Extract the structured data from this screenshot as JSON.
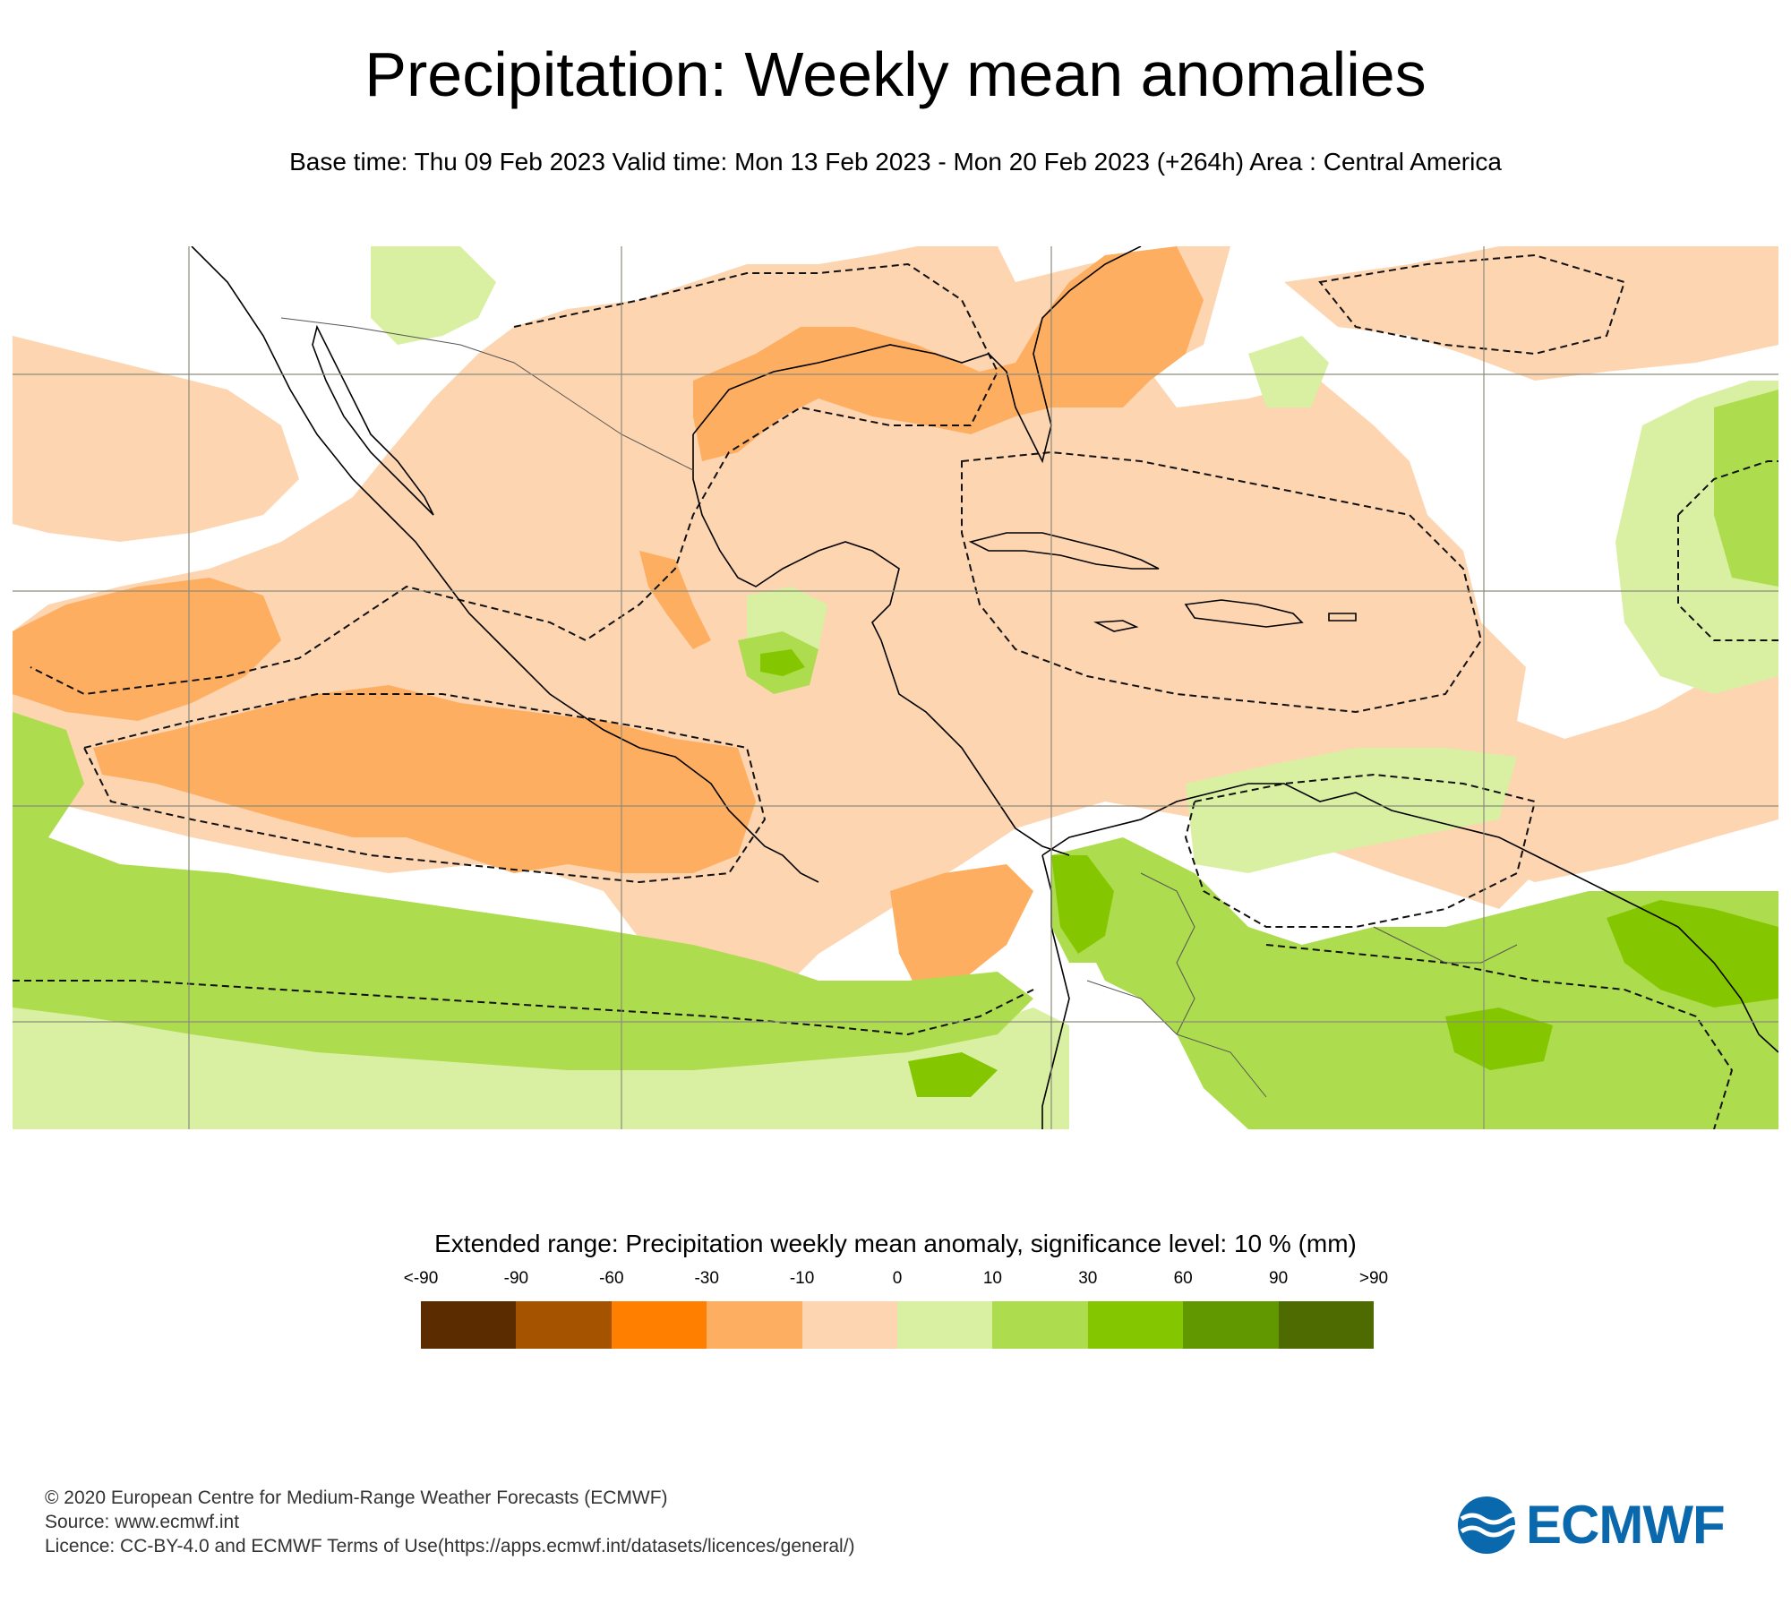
{
  "title": "Precipitation: Weekly mean anomalies",
  "subtitle": "Base time: Thu 09 Feb 2023 Valid time: Mon 13 Feb 2023 - Mon 20 Feb 2023 (+264h) Area : Central America",
  "map": {
    "area": "Central America",
    "ocean_color": "#ffffff",
    "gridline_color": "#8c8c7c",
    "coastline_color": "#000000",
    "significance_contour": "dashed"
  },
  "legend": {
    "title": "Extended range: Precipitation weekly mean anomaly, significance level: 10 % (mm)",
    "ticks": [
      "<-90",
      "-90",
      "-60",
      "-30",
      "-10",
      "0",
      "10",
      "30",
      "60",
      "90",
      ">90"
    ],
    "colors": [
      "#5b2c00",
      "#a65300",
      "#ff7f00",
      "#fdae61",
      "#fdd5b1",
      "#d9f0a3",
      "#addd4e",
      "#84c700",
      "#619800",
      "#4d6b00"
    ]
  },
  "footer": {
    "line1": "© 2020 European Centre for Medium-Range Weather Forecasts (ECMWF)",
    "line2": "Source: www.ecmwf.int",
    "line3": "Licence: CC-BY-4.0 and ECMWF Terms of Use(https://apps.ecmwf.int/datasets/licences/general/)"
  },
  "logo": {
    "text": "ECMWF",
    "color": "#0a68ad"
  }
}
